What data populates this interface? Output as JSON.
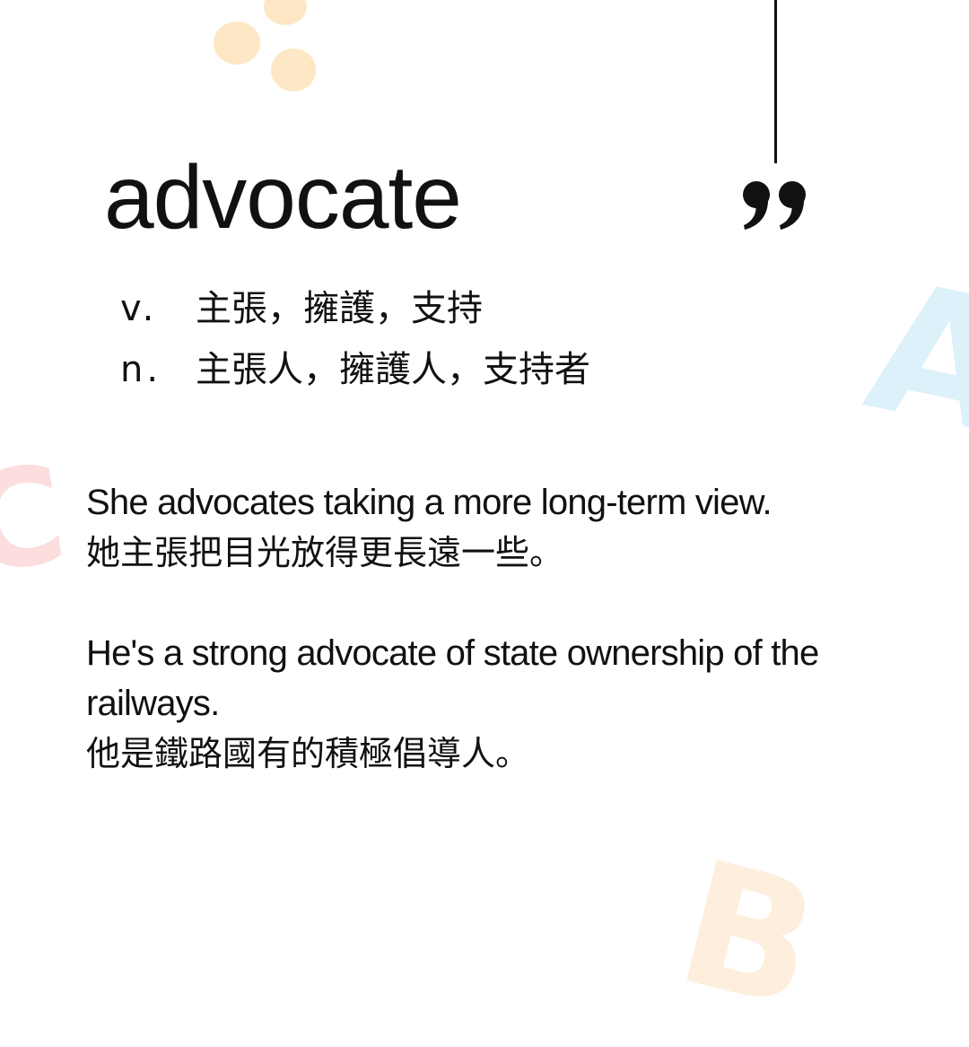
{
  "word": "advocate",
  "definitions": [
    {
      "pos": "v.",
      "meaning": "主張，擁護，支持"
    },
    {
      "pos": "n.",
      "meaning": "主張人，擁護人，支持者"
    }
  ],
  "examples": [
    {
      "en": "She advocates taking a more long-term view.",
      "zh": "她主張把目光放得更長遠一些。"
    },
    {
      "en": "He's a strong advocate of state ownership of the railways.",
      "zh": "他是鐵路國有的積極倡導人。"
    }
  ],
  "decorations": {
    "letters": [
      "A",
      "C",
      "B"
    ],
    "quote_icon": "closing-quote-icon"
  },
  "colors": {
    "background": "#ffffff",
    "text": "#111111",
    "dots": "#fde7c4",
    "letter_a": "#dcf1fa",
    "letter_c": "#fcdede",
    "letter_b": "#fdeedd"
  }
}
